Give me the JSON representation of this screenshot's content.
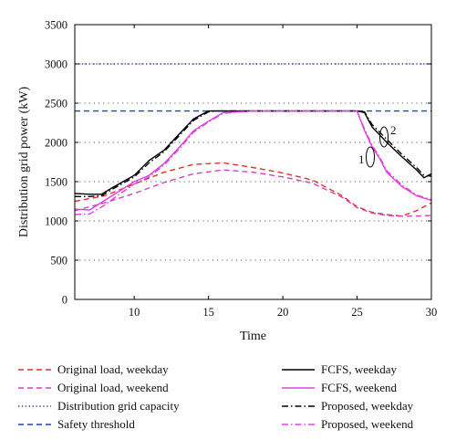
{
  "chart_data": {
    "type": "line",
    "title": "",
    "xlabel": "Time",
    "ylabel": "Distribution grid power (kW)",
    "xlim": [
      6,
      30
    ],
    "ylim": [
      0,
      3500
    ],
    "xticks": [
      "10",
      "15",
      "20",
      "25",
      "30"
    ],
    "yticks": [
      "0",
      "500",
      "1000",
      "1500",
      "2000",
      "2500",
      "3000",
      "3500"
    ],
    "grid": "horizontal dotted",
    "legend_position": "bottom",
    "series": [
      {
        "name": "Original load, weekday",
        "color": "#e03030",
        "style": "dashed",
        "x": [
          6,
          8,
          10,
          12,
          14,
          16,
          18,
          20,
          22,
          24,
          25,
          26,
          27,
          28,
          29,
          30
        ],
        "y": [
          1250,
          1320,
          1470,
          1620,
          1720,
          1740,
          1680,
          1610,
          1520,
          1320,
          1180,
          1110,
          1080,
          1060,
          1130,
          1230
        ]
      },
      {
        "name": "Original load, weekend",
        "color": "#d040d0",
        "style": "dashed",
        "x": [
          6,
          8,
          10,
          12,
          14,
          16,
          18,
          20,
          22,
          24,
          25,
          26,
          27,
          28,
          29,
          30
        ],
        "y": [
          1130,
          1230,
          1350,
          1490,
          1600,
          1650,
          1620,
          1560,
          1480,
          1300,
          1170,
          1100,
          1070,
          1060,
          1060,
          1070
        ]
      },
      {
        "name": "Distribution grid capacity",
        "color": "#3a3aa0",
        "style": "dotted",
        "x": [
          6,
          30
        ],
        "y": [
          3000,
          3000
        ]
      },
      {
        "name": "Safety threshold",
        "color": "#2040c0",
        "style": "dashed",
        "x": [
          6,
          30
        ],
        "y": [
          2400,
          2400
        ]
      },
      {
        "name": "FCFS, weekday",
        "color": "#000000",
        "style": "solid",
        "x": [
          6,
          7,
          7.8,
          8.5,
          10,
          11,
          12,
          13,
          14,
          15,
          15.5,
          18,
          20,
          22,
          23,
          24,
          25,
          25.5,
          26,
          27,
          28,
          29,
          29.5,
          30
        ],
        "y": [
          1350,
          1340,
          1340,
          1420,
          1580,
          1770,
          1900,
          2100,
          2300,
          2400,
          2400,
          2400,
          2400,
          2400,
          2400,
          2400,
          2400,
          2380,
          2200,
          2000,
          1820,
          1650,
          1550,
          1600
        ]
      },
      {
        "name": "FCFS, weekend",
        "color": "#e040e0",
        "style": "solid",
        "x": [
          6,
          7,
          8,
          9,
          10,
          11,
          12,
          13,
          14,
          15,
          16,
          17,
          18,
          20,
          22,
          24,
          25,
          25.5,
          26,
          26.5,
          27,
          28,
          29,
          30
        ],
        "y": [
          1150,
          1140,
          1260,
          1380,
          1500,
          1580,
          1730,
          1930,
          2150,
          2270,
          2380,
          2390,
          2400,
          2400,
          2400,
          2400,
          2400,
          2150,
          1950,
          1800,
          1620,
          1440,
          1320,
          1260
        ]
      },
      {
        "name": "Proposed, weekday",
        "color": "#000000",
        "style": "dashdot",
        "x": [
          6,
          7,
          7.8,
          8.5,
          10,
          11,
          12,
          13,
          14,
          15,
          15.5,
          18,
          20,
          22,
          23,
          24,
          25,
          25.5,
          26,
          27,
          28,
          29,
          29.5,
          30
        ],
        "y": [
          1310,
          1310,
          1320,
          1400,
          1560,
          1740,
          1880,
          2080,
          2280,
          2390,
          2400,
          2400,
          2400,
          2400,
          2400,
          2400,
          2400,
          2390,
          2230,
          2040,
          1850,
          1680,
          1580,
          1570
        ]
      },
      {
        "name": "Proposed, weekend",
        "color": "#e040e0",
        "style": "dashdot",
        "x": [
          6,
          7,
          8,
          9,
          10,
          11,
          12,
          13,
          14,
          15,
          16,
          17,
          18,
          20,
          22,
          24,
          25,
          25.5,
          26,
          26.5,
          27,
          28,
          29,
          30
        ],
        "y": [
          1080,
          1090,
          1200,
          1340,
          1470,
          1560,
          1710,
          1910,
          2130,
          2260,
          2370,
          2390,
          2400,
          2400,
          2400,
          2400,
          2400,
          2170,
          1970,
          1820,
          1640,
          1460,
          1330,
          1270
        ]
      }
    ],
    "annotations": [
      "1",
      "2"
    ]
  }
}
